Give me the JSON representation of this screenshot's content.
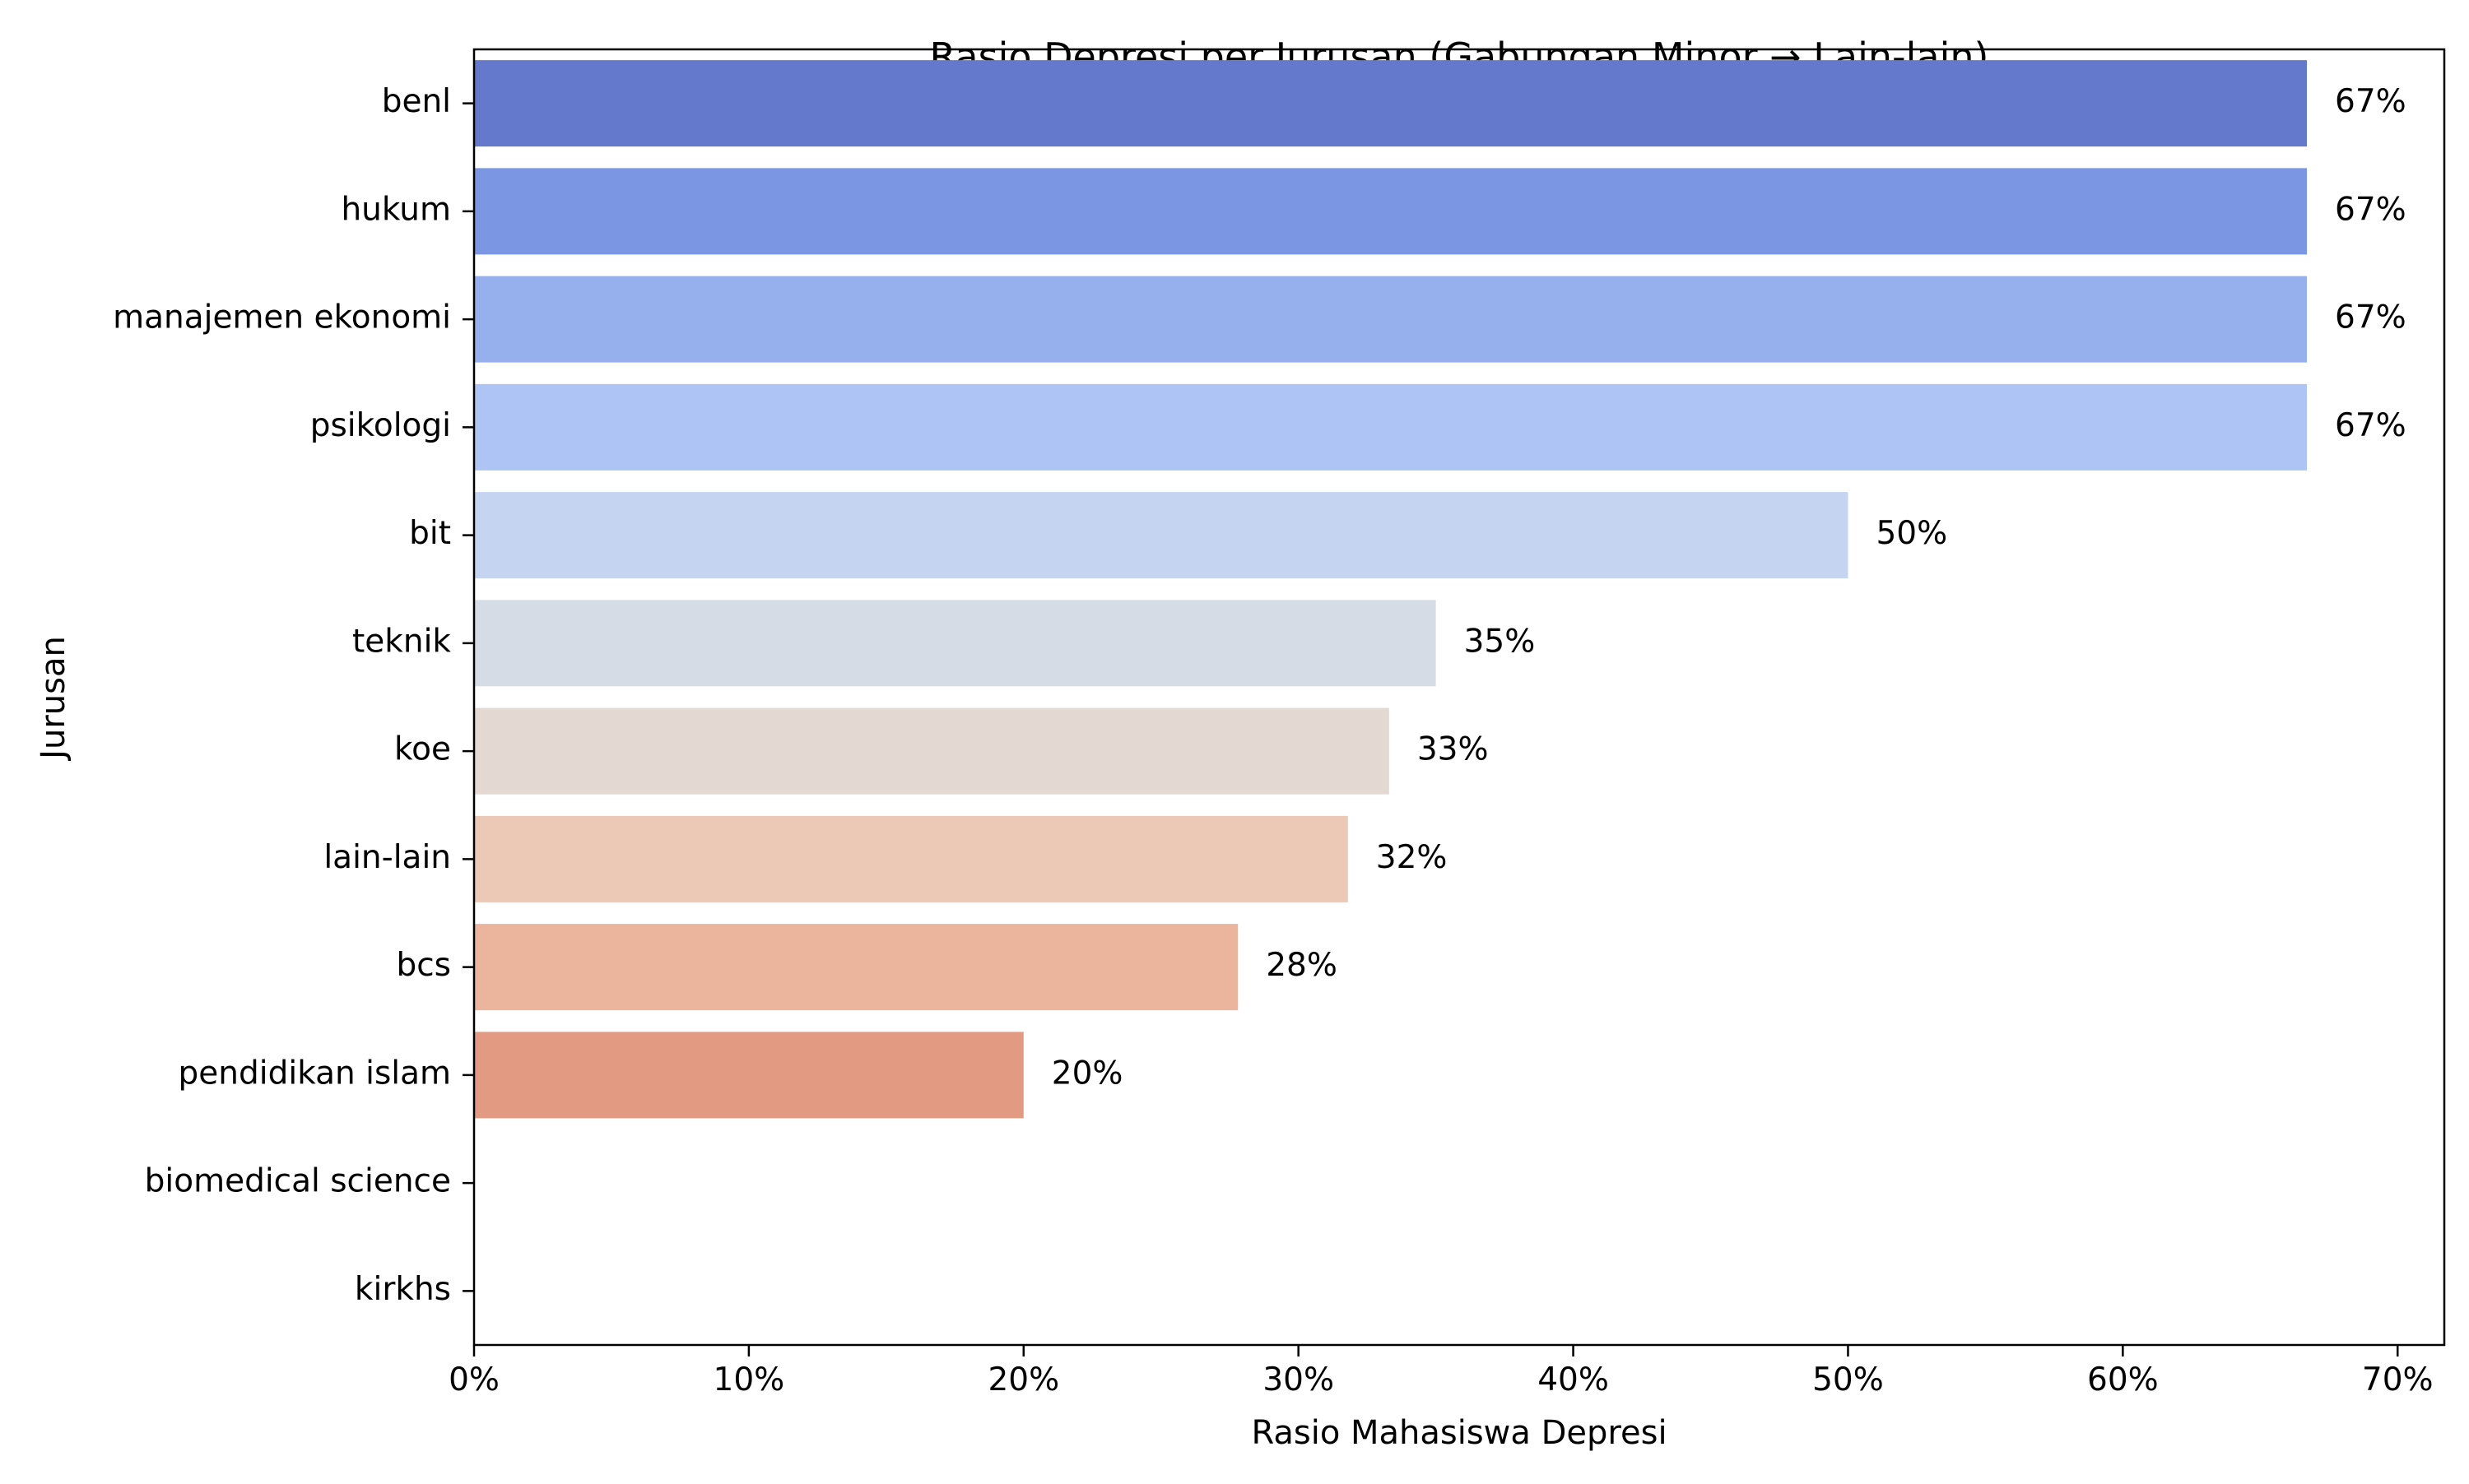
{
  "chart_data": {
    "type": "bar",
    "orientation": "horizontal",
    "title": "Rasio Depresi per Jurusan (Gabungan Minor → Lain-lain)",
    "xlabel": "Rasio Mahasiswa Depresi",
    "ylabel": "Jurusan",
    "xlim": [
      0,
      0.717
    ],
    "x_ticks": [
      0,
      0.1,
      0.2,
      0.3,
      0.4,
      0.5,
      0.6,
      0.7
    ],
    "x_tick_labels": [
      "0%",
      "10%",
      "20%",
      "30%",
      "40%",
      "50%",
      "60%",
      "70%"
    ],
    "grid": false,
    "legend": "none",
    "categories": [
      "benl",
      "hukum",
      "manajemen ekonomi",
      "psikologi",
      "bit",
      "teknik",
      "koe",
      "lain-lain",
      "bcs",
      "pendidikan islam",
      "biomedical science",
      "kirkhs"
    ],
    "values": [
      0.667,
      0.667,
      0.667,
      0.667,
      0.5,
      0.35,
      0.333,
      0.318,
      0.278,
      0.2,
      0,
      0
    ],
    "value_labels": [
      "67%",
      "67%",
      "67%",
      "67%",
      "50%",
      "35%",
      "33%",
      "32%",
      "28%",
      "20%",
      "",
      ""
    ],
    "colors": [
      "#6479cb",
      "#7b96e2",
      "#96b0ed",
      "#adc4f4",
      "#c5d4f0",
      "#d6dce5",
      "#e4d8d3",
      "#ecc8b7",
      "#ebb49c",
      "#e29b82",
      "#d57e64",
      "#c5604a"
    ]
  }
}
